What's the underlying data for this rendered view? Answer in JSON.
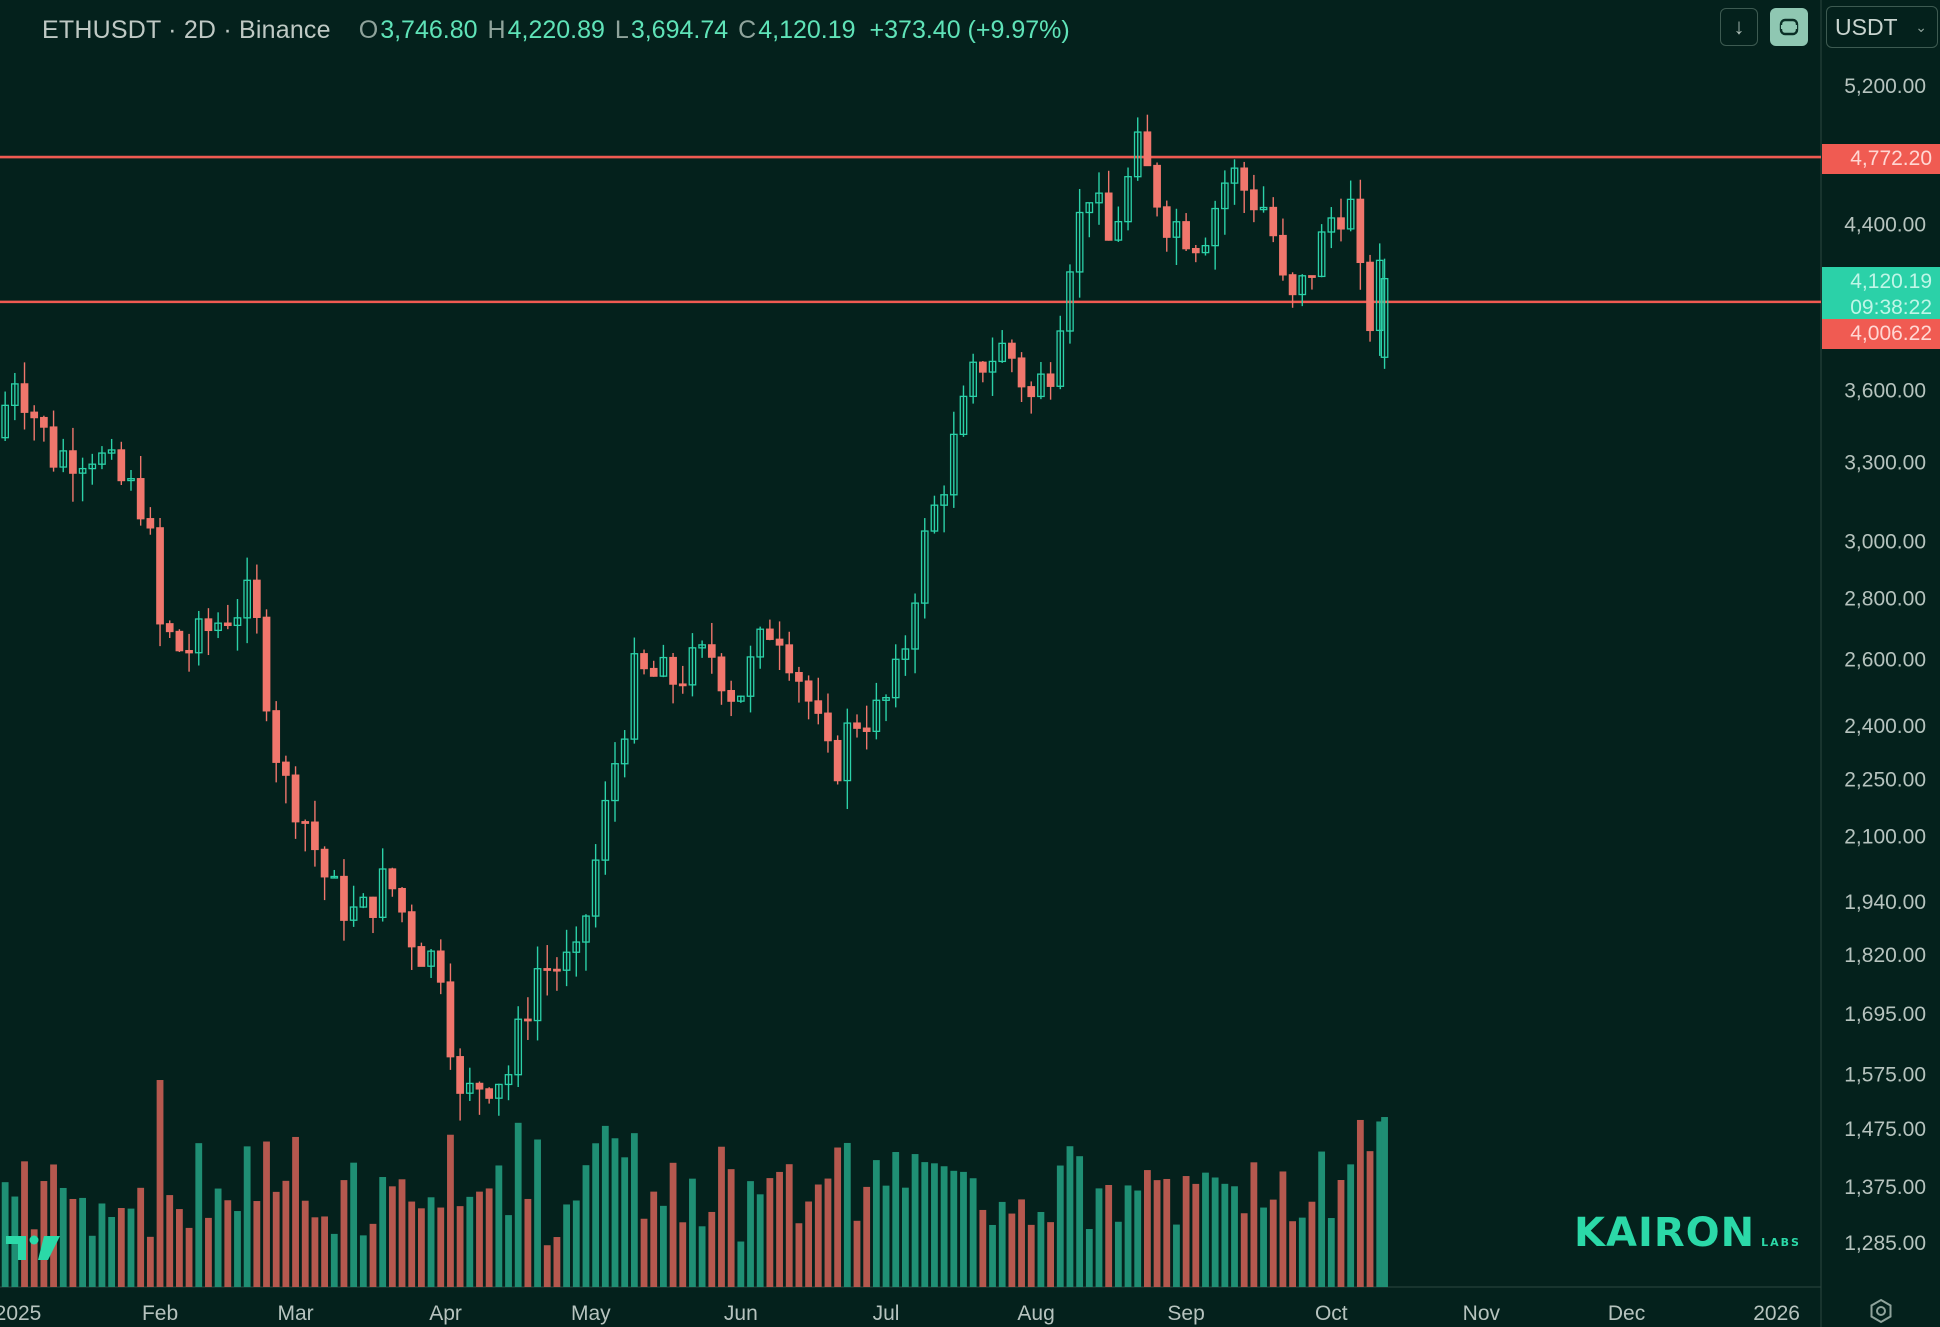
{
  "header": {
    "symbol": "ETHUSDT · 2D · Binance",
    "open_label": "O",
    "open_value": "3,746.80",
    "high_label": "H",
    "high_value": "4,220.89",
    "low_label": "L",
    "low_value": "3,694.74",
    "close_label": "C",
    "close_value": "4,120.19",
    "change": "+373.40 (+9.97%)"
  },
  "toolbar": {
    "currency": "USDT"
  },
  "price_tags": {
    "resistance_high": "4,772.20",
    "current_price": "4,120.19",
    "countdown": "09:38:22",
    "resistance_low": "4,006.22"
  },
  "watermark": {
    "brand": "KAIRON",
    "sub": "LABS"
  },
  "colors": {
    "background": "#04211c",
    "up": "#2bd1a8",
    "down": "#f0766c",
    "hline": "#f05b52",
    "vol_up": "#1f8f74",
    "vol_down": "#b5584e"
  },
  "icons": [
    "download-arrow-icon",
    "sync-icon",
    "chevron-down-icon",
    "tradingview-logo",
    "settings-icon"
  ],
  "chart_data": {
    "type": "candlestick",
    "scale": "log",
    "ylim": [
      1240,
      5300
    ],
    "y_ticks": [
      "5,200.00",
      "4,400.00",
      "3,600.00",
      "3,300.00",
      "3,000.00",
      "2,800.00",
      "2,600.00",
      "2,400.00",
      "2,250.00",
      "2,100.00",
      "1,940.00",
      "1,820.00",
      "1,695.00",
      "1,575.00",
      "1,475.00",
      "1,375.00",
      "1,285.00"
    ],
    "x_ticks": [
      "2025",
      "Feb",
      "Mar",
      "Apr",
      "May",
      "Jun",
      "Jul",
      "Aug",
      "Sep",
      "Oct",
      "Nov",
      "Dec",
      "2026"
    ],
    "horizontal_lines": [
      4772.2,
      4006.22
    ],
    "anchors": [
      [
        "2024-12-31",
        3400
      ],
      [
        "2025-01-04",
        3680
      ],
      [
        "2025-01-12",
        3330
      ],
      [
        "2025-01-20",
        3350
      ],
      [
        "2025-01-26",
        3220
      ],
      [
        "2025-01-31",
        3140
      ],
      [
        "2025-02-03",
        2700
      ],
      [
        "2025-02-08",
        2620
      ],
      [
        "2025-02-16",
        2740
      ],
      [
        "2025-02-22",
        2800
      ],
      [
        "2025-02-28",
        2250
      ],
      [
        "2025-03-04",
        2180
      ],
      [
        "2025-03-10",
        1970
      ],
      [
        "2025-03-16",
        1900
      ],
      [
        "2025-03-22",
        2000
      ],
      [
        "2025-03-28",
        1840
      ],
      [
        "2025-04-02",
        1800
      ],
      [
        "2025-04-06",
        1520
      ],
      [
        "2025-04-10",
        1560
      ],
      [
        "2025-04-16",
        1580
      ],
      [
        "2025-04-22",
        1790
      ],
      [
        "2025-04-30",
        1800
      ],
      [
        "2025-05-08",
        2300
      ],
      [
        "2025-05-12",
        2550
      ],
      [
        "2025-05-20",
        2540
      ],
      [
        "2025-05-28",
        2620
      ],
      [
        "2025-06-02",
        2480
      ],
      [
        "2025-06-10",
        2740
      ],
      [
        "2025-06-16",
        2520
      ],
      [
        "2025-06-22",
        2260
      ],
      [
        "2025-06-26",
        2420
      ],
      [
        "2025-07-02",
        2440
      ],
      [
        "2025-07-06",
        2570
      ],
      [
        "2025-07-10",
        2940
      ],
      [
        "2025-07-16",
        3300
      ],
      [
        "2025-07-22",
        3720
      ],
      [
        "2025-07-28",
        3800
      ],
      [
        "2025-08-02",
        3560
      ],
      [
        "2025-08-06",
        3720
      ],
      [
        "2025-08-10",
        4250
      ],
      [
        "2025-08-14",
        4600
      ],
      [
        "2025-08-18",
        4300
      ],
      [
        "2025-08-24",
        4800
      ],
      [
        "2025-08-30",
        4440
      ],
      [
        "2025-09-06",
        4320
      ],
      [
        "2025-09-12",
        4700
      ],
      [
        "2025-09-16",
        4560
      ],
      [
        "2025-09-20",
        4480
      ],
      [
        "2025-09-24",
        3950
      ],
      [
        "2025-09-28",
        4120
      ],
      [
        "2025-10-04",
        4500
      ],
      [
        "2025-10-08",
        4480
      ],
      [
        "2025-10-10",
        3746.8
      ],
      [
        "2025-10-12",
        4120.19
      ]
    ],
    "last_candle": {
      "date": "2025-10-12",
      "open": 3746.8,
      "high": 4220.89,
      "low": 3694.74,
      "close": 4120.19
    }
  }
}
